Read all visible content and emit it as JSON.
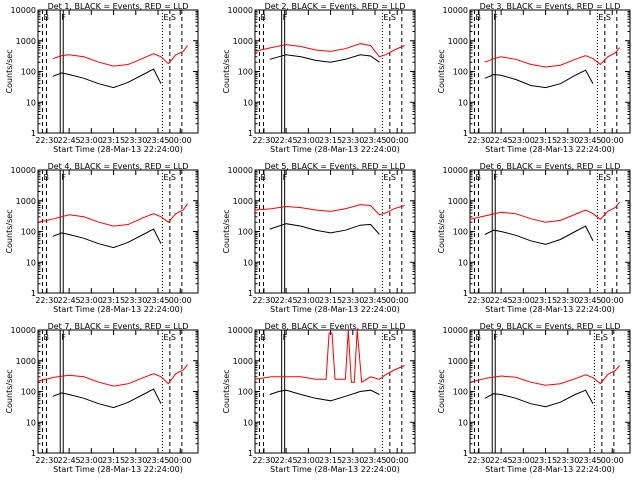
{
  "figure": {
    "start_time_label": "Start Time (28-Mar-13 22:24:00)"
  },
  "chart_data": [
    {
      "type": "line",
      "title": "Det 1, BLACK = Events, RED = LLD",
      "xlabel": "Start Time (28-Mar-13 22:24:00)",
      "ylabel": "Counts/sec",
      "scale": "log",
      "ylim": [
        1,
        10000
      ],
      "xlim": [
        "22:24",
        "00:12"
      ],
      "x_ticks": [
        "22:30",
        "22:45",
        "23:00",
        "23:15",
        "23:30",
        "23:45",
        "00:00"
      ],
      "y_ticks": [
        "1",
        "10",
        "100",
        "1000",
        "10000"
      ],
      "markers": [
        {
          "label": "B",
          "time": "22:27"
        },
        {
          "label": "F",
          "time": "22:39"
        },
        {
          "label": "E",
          "time": "23:48"
        },
        {
          "label": "S",
          "time": "23:53"
        }
      ],
      "series": [
        {
          "name": "LLD",
          "color": "#ff0000",
          "x": [
            "22:34",
            "22:40",
            "22:45",
            "22:55",
            "23:05",
            "23:15",
            "23:25",
            "23:35",
            "23:42",
            "23:47",
            "23:52",
            "23:57",
            "00:02",
            "00:05"
          ],
          "y": [
            260,
            330,
            350,
            300,
            200,
            150,
            170,
            270,
            380,
            300,
            180,
            350,
            450,
            700
          ]
        },
        {
          "name": "Events",
          "color": "#000000",
          "x": [
            "22:34",
            "22:40",
            "22:45",
            "22:55",
            "23:05",
            "23:15",
            "23:25",
            "23:35",
            "23:42",
            "23:47"
          ],
          "y": [
            70,
            90,
            80,
            60,
            40,
            30,
            45,
            80,
            120,
            40
          ]
        }
      ]
    },
    {
      "type": "line",
      "title": "Det 2, BLACK = Events, RED = LLD",
      "xlabel": "Start Time (28-Mar-13 22:24:00)",
      "ylabel": "Counts/sec",
      "scale": "log",
      "ylim": [
        1,
        10000
      ],
      "xlim": [
        "22:24",
        "00:12"
      ],
      "x_ticks": [
        "22:30",
        "22:45",
        "23:00",
        "23:15",
        "23:30",
        "23:45",
        "00:00"
      ],
      "y_ticks": [
        "1",
        "10",
        "100",
        "1000",
        "10000"
      ],
      "markers": [
        {
          "label": "B",
          "time": "22:27"
        },
        {
          "label": "F",
          "time": "22:42"
        },
        {
          "label": "E",
          "time": "23:50"
        },
        {
          "label": "S",
          "time": "23:55"
        }
      ],
      "series": [
        {
          "name": "LLD",
          "color": "#ff0000",
          "x": [
            "22:24",
            "22:35",
            "22:45",
            "22:55",
            "23:05",
            "23:15",
            "23:25",
            "23:35",
            "23:42",
            "23:48",
            "23:52",
            "23:58",
            "00:05"
          ],
          "y": [
            450,
            600,
            750,
            650,
            500,
            450,
            550,
            800,
            700,
            300,
            350,
            500,
            700
          ]
        },
        {
          "name": "Events",
          "color": "#000000",
          "x": [
            "22:34",
            "22:40",
            "22:45",
            "22:55",
            "23:05",
            "23:15",
            "23:25",
            "23:35",
            "23:42",
            "23:48"
          ],
          "y": [
            250,
            300,
            350,
            300,
            230,
            200,
            250,
            350,
            320,
            200
          ]
        }
      ]
    },
    {
      "type": "line",
      "title": "Det 3, BLACK = Events, RED = LLD",
      "xlabel": "Start Time (28-Mar-13 22:24:00)",
      "ylabel": "Counts/sec",
      "scale": "log",
      "ylim": [
        1,
        10000
      ],
      "xlim": [
        "22:24",
        "00:12"
      ],
      "x_ticks": [
        "22:30",
        "22:45",
        "23:00",
        "23:15",
        "23:30",
        "23:45",
        "00:00"
      ],
      "y_ticks": [
        "1",
        "10",
        "100",
        "1000",
        "10000"
      ],
      "markers": [
        {
          "label": "B",
          "time": "22:27"
        },
        {
          "label": "F",
          "time": "22:39"
        },
        {
          "label": "E",
          "time": "23:50"
        },
        {
          "label": "S",
          "time": "23:55"
        }
      ],
      "series": [
        {
          "name": "LLD",
          "color": "#ff0000",
          "x": [
            "22:34",
            "22:40",
            "22:45",
            "22:55",
            "23:05",
            "23:15",
            "23:25",
            "23:35",
            "23:42",
            "23:47",
            "23:52",
            "23:57",
            "00:02",
            "00:05"
          ],
          "y": [
            200,
            260,
            300,
            250,
            170,
            140,
            160,
            250,
            330,
            260,
            170,
            300,
            400,
            600
          ]
        },
        {
          "name": "Events",
          "color": "#000000",
          "x": [
            "22:34",
            "22:40",
            "22:45",
            "22:55",
            "23:05",
            "23:15",
            "23:25",
            "23:35",
            "23:42",
            "23:47"
          ],
          "y": [
            60,
            80,
            75,
            55,
            35,
            30,
            40,
            75,
            110,
            40
          ]
        }
      ]
    },
    {
      "type": "line",
      "title": "Det 4, BLACK = Events, RED = LLD",
      "xlabel": "Start Time (28-Mar-13 22:24:00)",
      "ylabel": "Counts/sec",
      "scale": "log",
      "ylim": [
        1,
        10000
      ],
      "xlim": [
        "22:24",
        "00:12"
      ],
      "x_ticks": [
        "22:30",
        "22:45",
        "23:00",
        "23:15",
        "23:30",
        "23:45",
        "00:00"
      ],
      "y_ticks": [
        "1",
        "10",
        "100",
        "1000",
        "10000"
      ],
      "markers": [
        {
          "label": "B",
          "time": "22:27"
        },
        {
          "label": "F",
          "time": "22:39"
        },
        {
          "label": "E",
          "time": "23:48"
        },
        {
          "label": "S",
          "time": "23:53"
        }
      ],
      "series": [
        {
          "name": "LLD",
          "color": "#ff0000",
          "x": [
            "22:24",
            "22:35",
            "22:45",
            "22:55",
            "23:05",
            "23:15",
            "23:25",
            "23:35",
            "23:42",
            "23:47",
            "23:52",
            "23:57",
            "00:02",
            "00:05"
          ],
          "y": [
            200,
            260,
            350,
            300,
            200,
            150,
            170,
            280,
            380,
            300,
            200,
            380,
            500,
            800
          ]
        },
        {
          "name": "Events",
          "color": "#000000",
          "x": [
            "22:34",
            "22:40",
            "22:45",
            "22:55",
            "23:05",
            "23:15",
            "23:25",
            "23:35",
            "23:42",
            "23:47"
          ],
          "y": [
            70,
            90,
            80,
            60,
            40,
            30,
            45,
            80,
            120,
            40
          ]
        }
      ]
    },
    {
      "type": "line",
      "title": "Det 5, BLACK = Events, RED = LLD",
      "xlabel": "Start Time (28-Mar-13 22:24:00)",
      "ylabel": "Counts/sec",
      "scale": "log",
      "ylim": [
        1,
        10000
      ],
      "xlim": [
        "22:24",
        "00:12"
      ],
      "x_ticks": [
        "22:30",
        "22:45",
        "23:00",
        "23:15",
        "23:30",
        "23:45",
        "00:00"
      ],
      "y_ticks": [
        "1",
        "10",
        "100",
        "1000",
        "10000"
      ],
      "markers": [
        {
          "label": "B",
          "time": "22:27"
        },
        {
          "label": "F",
          "time": "22:42"
        },
        {
          "label": "E",
          "time": "23:50"
        },
        {
          "label": "S",
          "time": "23:55"
        }
      ],
      "series": [
        {
          "name": "LLD",
          "color": "#ff0000",
          "x": [
            "22:24",
            "22:35",
            "22:45",
            "22:55",
            "23:05",
            "23:15",
            "23:25",
            "23:35",
            "23:42",
            "23:48",
            "23:52",
            "23:58",
            "00:05"
          ],
          "y": [
            500,
            550,
            650,
            600,
            500,
            450,
            550,
            750,
            700,
            350,
            400,
            550,
            700
          ]
        },
        {
          "name": "Events",
          "color": "#000000",
          "x": [
            "22:34",
            "22:40",
            "22:45",
            "22:55",
            "23:05",
            "23:15",
            "23:25",
            "23:35",
            "23:42",
            "23:48"
          ],
          "y": [
            120,
            150,
            180,
            150,
            110,
            90,
            110,
            160,
            170,
            80
          ]
        }
      ]
    },
    {
      "type": "line",
      "title": "Det 6, BLACK = Events, RED = LLD",
      "xlabel": "Start Time (28-Mar-13 22:24:00)",
      "ylabel": "Counts/sec",
      "scale": "log",
      "ylim": [
        1,
        10000
      ],
      "xlim": [
        "22:24",
        "00:12"
      ],
      "x_ticks": [
        "22:30",
        "22:45",
        "23:00",
        "23:15",
        "23:30",
        "23:45",
        "00:00"
      ],
      "y_ticks": [
        "1",
        "10",
        "100",
        "1000",
        "10000"
      ],
      "markers": [
        {
          "label": "B",
          "time": "22:27"
        },
        {
          "label": "F",
          "time": "22:39"
        },
        {
          "label": "E",
          "time": "23:50"
        },
        {
          "label": "S",
          "time": "23:55"
        }
      ],
      "series": [
        {
          "name": "LLD",
          "color": "#ff0000",
          "x": [
            "22:24",
            "22:35",
            "22:45",
            "22:55",
            "23:05",
            "23:15",
            "23:25",
            "23:35",
            "23:42",
            "23:47",
            "23:52",
            "23:57",
            "00:02",
            "00:05"
          ],
          "y": [
            250,
            330,
            420,
            380,
            260,
            200,
            230,
            360,
            500,
            380,
            250,
            450,
            600,
            900
          ]
        },
        {
          "name": "Events",
          "color": "#000000",
          "x": [
            "22:34",
            "22:40",
            "22:45",
            "22:55",
            "23:05",
            "23:15",
            "23:25",
            "23:35",
            "23:42",
            "23:47"
          ],
          "y": [
            80,
            110,
            100,
            75,
            50,
            38,
            55,
            100,
            150,
            50
          ]
        }
      ]
    },
    {
      "type": "line",
      "title": "Det 7, BLACK = Events, RED = LLD",
      "xlabel": "Start Time (28-Mar-13 22:24:00)",
      "ylabel": "Counts/sec",
      "scale": "log",
      "ylim": [
        1,
        10000
      ],
      "xlim": [
        "22:24",
        "00:12"
      ],
      "x_ticks": [
        "22:30",
        "22:45",
        "23:00",
        "23:15",
        "23:30",
        "23:45",
        "00:00"
      ],
      "y_ticks": [
        "1",
        "10",
        "100",
        "1000",
        "10000"
      ],
      "markers": [
        {
          "label": "B",
          "time": "22:27"
        },
        {
          "label": "F",
          "time": "22:39"
        },
        {
          "label": "E",
          "time": "23:48"
        },
        {
          "label": "S",
          "time": "23:53"
        }
      ],
      "series": [
        {
          "name": "LLD",
          "color": "#ff0000",
          "x": [
            "22:24",
            "22:35",
            "22:45",
            "22:55",
            "23:05",
            "23:15",
            "23:25",
            "23:35",
            "23:42",
            "23:47",
            "23:52",
            "23:57",
            "00:02",
            "00:05"
          ],
          "y": [
            220,
            290,
            340,
            300,
            200,
            150,
            180,
            280,
            380,
            300,
            180,
            380,
            500,
            750
          ]
        },
        {
          "name": "Events",
          "color": "#000000",
          "x": [
            "22:34",
            "22:40",
            "22:45",
            "22:55",
            "23:05",
            "23:15",
            "23:25",
            "23:35",
            "23:42",
            "23:47"
          ],
          "y": [
            70,
            90,
            80,
            60,
            40,
            30,
            45,
            80,
            120,
            40
          ]
        }
      ]
    },
    {
      "type": "line",
      "title": "Det 8, BLACK = Events, RED = LLD",
      "xlabel": "Start Time (28-Mar-13 22:24:00)",
      "ylabel": "Counts/sec",
      "scale": "log",
      "ylim": [
        1,
        10000
      ],
      "xlim": [
        "22:24",
        "00:12"
      ],
      "x_ticks": [
        "22:30",
        "22:45",
        "23:00",
        "23:15",
        "23:30",
        "23:45",
        "00:00"
      ],
      "y_ticks": [
        "1",
        "10",
        "100",
        "1000",
        "10000"
      ],
      "markers": [
        {
          "label": "B",
          "time": "22:27"
        },
        {
          "label": "F",
          "time": "22:42"
        },
        {
          "label": "E",
          "time": "23:50"
        },
        {
          "label": "S",
          "time": "23:55"
        }
      ],
      "series": [
        {
          "name": "LLD",
          "color": "#ff0000",
          "x": [
            "22:24",
            "22:35",
            "22:45",
            "22:55",
            "23:05",
            "23:12",
            "23:14",
            "23:16",
            "23:18",
            "23:25",
            "23:27",
            "23:29",
            "23:31",
            "23:33",
            "23:36",
            "23:42",
            "23:48",
            "23:52",
            "23:58",
            "00:05"
          ],
          "y": [
            250,
            300,
            300,
            300,
            250,
            250,
            8000,
            8000,
            250,
            250,
            10000,
            200,
            200,
            10000,
            200,
            300,
            250,
            350,
            500,
            700
          ]
        },
        {
          "name": "Events",
          "color": "#000000",
          "x": [
            "22:34",
            "22:40",
            "22:45",
            "22:55",
            "23:05",
            "23:15",
            "23:25",
            "23:35",
            "23:42",
            "23:48"
          ],
          "y": [
            80,
            100,
            110,
            80,
            60,
            50,
            70,
            100,
            110,
            80
          ]
        }
      ]
    },
    {
      "type": "line",
      "title": "Det 9, BLACK = Events, RED = LLD",
      "xlabel": "Start Time (28-Mar-13 22:24:00)",
      "ylabel": "Counts/sec",
      "scale": "log",
      "ylim": [
        1,
        10000
      ],
      "xlim": [
        "22:24",
        "00:12"
      ],
      "x_ticks": [
        "22:30",
        "22:45",
        "23:00",
        "23:15",
        "23:30",
        "23:45",
        "00:00"
      ],
      "y_ticks": [
        "1",
        "10",
        "100",
        "1000",
        "10000"
      ],
      "markers": [
        {
          "label": "B",
          "time": "22:27"
        },
        {
          "label": "F",
          "time": "22:39"
        },
        {
          "label": "E",
          "time": "23:48"
        },
        {
          "label": "S",
          "time": "23:53"
        }
      ],
      "series": [
        {
          "name": "LLD",
          "color": "#ff0000",
          "x": [
            "22:24",
            "22:35",
            "22:45",
            "22:55",
            "23:05",
            "23:15",
            "23:25",
            "23:35",
            "23:42",
            "23:47",
            "23:52",
            "23:57",
            "00:02",
            "00:05"
          ],
          "y": [
            200,
            270,
            320,
            290,
            200,
            160,
            180,
            260,
            350,
            280,
            180,
            360,
            480,
            700
          ]
        },
        {
          "name": "Events",
          "color": "#000000",
          "x": [
            "22:34",
            "22:40",
            "22:45",
            "22:55",
            "23:05",
            "23:15",
            "23:25",
            "23:35",
            "23:42",
            "23:47"
          ],
          "y": [
            60,
            85,
            80,
            60,
            40,
            32,
            45,
            80,
            110,
            40
          ]
        }
      ]
    }
  ]
}
